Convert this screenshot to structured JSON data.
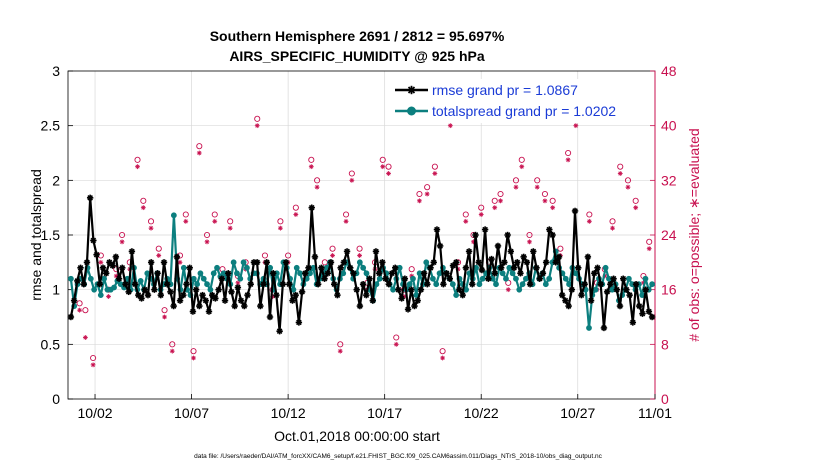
{
  "chart_data": {
    "type": "line",
    "title_line1": "Southern Hemisphere 2691 / 2812 = 95.697%",
    "title_line2": "AIRS_SPECIFIC_HUMIDITY @ 925 hPa",
    "xlabel": "Oct.01,2018 00:00:00 start",
    "ylabel_left": "rmse and totalspread",
    "ylabel_right": "# of obs: o=possible; ∗=evaluated",
    "footnote": "data file: /Users/raeder/DAI/ATM_forcXX/CAM6_setup/f.e21.FHIST_BGC.f09_025.CAM6assim.011/Diags_NTrS_2018-10/obs_diag_output.nc",
    "xlim": [
      0.6,
      31.0
    ],
    "ylim_left": [
      0,
      3
    ],
    "ylim_right": [
      0,
      48
    ],
    "x_ticks": [
      {
        "value": 2,
        "label": "10/02"
      },
      {
        "value": 7,
        "label": "10/07"
      },
      {
        "value": 12,
        "label": "10/12"
      },
      {
        "value": 17,
        "label": "10/17"
      },
      {
        "value": 22,
        "label": "10/22"
      },
      {
        "value": 27,
        "label": "10/27"
      },
      {
        "value": 32,
        "label": "11/01"
      }
    ],
    "y_ticks_left": [
      {
        "value": 0,
        "label": "0"
      },
      {
        "value": 0.5,
        "label": "0.5"
      },
      {
        "value": 1,
        "label": "1"
      },
      {
        "value": 1.5,
        "label": "1.5"
      },
      {
        "value": 2,
        "label": "2"
      },
      {
        "value": 2.5,
        "label": "2.5"
      },
      {
        "value": 3,
        "label": "3"
      }
    ],
    "y_ticks_right": [
      {
        "value": 0,
        "label": "0"
      },
      {
        "value": 8,
        "label": "8"
      },
      {
        "value": 16,
        "label": "16"
      },
      {
        "value": 24,
        "label": "24"
      },
      {
        "value": 32,
        "label": "32"
      },
      {
        "value": 40,
        "label": "40"
      },
      {
        "value": 48,
        "label": "48"
      }
    ],
    "series": [
      {
        "name": "rmse grand pr = 1.0867",
        "color": "#000000",
        "marker": "asterisk",
        "axis": "left",
        "values": [
          0.75,
          0.9,
          1.08,
          1.2,
          1.05,
          1.25,
          1.84,
          1.45,
          1.32,
          1.05,
          1.2,
          1.15,
          1.25,
          1.22,
          1.3,
          1.1,
          1.2,
          1.05,
          0.98,
          1.35,
          1.05,
          0.95,
          0.92,
          1.0,
          0.95,
          1.25,
          1.0,
          1.15,
          0.95,
          1.25,
          1.05,
          0.98,
          0.85,
          1.3,
          0.9,
          0.95,
          1.05,
          1.2,
          0.8,
          1.0,
          0.85,
          0.95,
          0.9,
          0.8,
          0.95,
          0.92,
          1.0,
          1.1,
          0.9,
          1.15,
          0.98,
          0.85,
          1.02,
          0.9,
          0.85,
          0.95,
          1.05,
          1.25,
          1.25,
          0.85,
          1.05,
          1.25,
          0.75,
          1.15,
          0.95,
          0.62,
          1.05,
          1.25,
          1.05,
          0.9,
          0.95,
          0.7,
          0.98,
          1.15,
          1.2,
          1.75,
          1.3,
          1.05,
          1.2,
          1.1,
          1.15,
          1.25,
          1.05,
          0.95,
          1.2,
          1.25,
          1.35,
          1.2,
          1.15,
          1.0,
          0.85,
          1.05,
          0.95,
          1.1,
          0.9,
          1.35,
          1.15,
          1.25,
          1.1,
          1.05,
          1.15,
          1.2,
          1.0,
          0.92,
          1.1,
          0.82,
          1.0,
          0.85,
          0.9,
          1.0,
          1.15,
          1.05,
          1.2,
          1.25,
          1.55,
          1.4,
          1.05,
          1.15,
          1.1,
          1.22,
          1.25,
          1.0,
          0.95,
          1.2,
          1.35,
          1.05,
          1.5,
          1.25,
          1.18,
          1.55,
          1.1,
          1.28,
          1.15,
          1.4,
          1.2,
          1.25,
          1.5,
          1.35,
          1.2,
          1.25,
          1.15,
          1.3,
          1.25,
          1.05,
          1.35,
          1.2,
          1.1,
          1.15,
          1.25,
          1.55,
          1.5,
          1.25,
          1.3,
          0.95,
          0.9,
          0.85,
          1.0,
          1.72,
          1.2,
          0.95,
          1.05,
          1.3,
          0.9,
          1.15,
          1.2,
          1.05,
          0.65,
          0.98,
          1.05,
          1.1,
          1.0,
          0.85,
          1.1,
          1.0,
          0.95,
          0.7,
          1.05,
          0.85,
          0.78,
          1.0,
          0.8,
          0.75
        ]
      },
      {
        "name": "totalspread grand pr = 1.0202",
        "color": "#0c7f7f",
        "marker": "circle",
        "axis": "left",
        "values": [
          1.1,
          0.85,
          1.05,
          1.1,
          1.05,
          1.2,
          1.1,
          1.0,
          1.05,
          0.95,
          1.1,
          1.0,
          1.0,
          1.02,
          1.08,
          1.05,
          1.02,
          1.1,
          1.0,
          1.2,
          1.0,
          1.08,
          1.0,
          1.15,
          1.1,
          1.05,
          1.15,
          1.0,
          1.05,
          1.1,
          1.05,
          1.68,
          1.1,
          1.0,
          1.2,
          1.0,
          0.95,
          1.1,
          1.05,
          1.15,
          1.1,
          1.05,
          1.0,
          1.15,
          1.2,
          1.12,
          1.15,
          1.1,
          1.05,
          1.25,
          1.15,
          1.1,
          1.25,
          1.2,
          1.1,
          1.15,
          1.15,
          1.05,
          1.1,
          1.05,
          1.2,
          1.0,
          1.15,
          1.05,
          1.25,
          1.2,
          1.1,
          1.0,
          1.2,
          1.15,
          1.05,
          1.1,
          1.15,
          1.2,
          1.05,
          1.1,
          1.15,
          1.2,
          1.25,
          1.1,
          1.0,
          1.1,
          1.15,
          1.25,
          1.2,
          1.1,
          1.15,
          1.25,
          1.2,
          1.15,
          1.0,
          0.9,
          1.05,
          1.1,
          1.2,
          1.15,
          1.05,
          1.0,
          1.1,
          1.2,
          1.05,
          1.0,
          1.05,
          1.1,
          0.95,
          1.15,
          1.05,
          1.25,
          1.2,
          1.1,
          1.05,
          1.15,
          1.2,
          1.15,
          1.1,
          1.05,
          0.95,
          1.1,
          1.05,
          1.0,
          1.15,
          1.1,
          1.2,
          1.05,
          1.1,
          1.15,
          1.2,
          1.1,
          1.05,
          1.2,
          1.15,
          1.1,
          1.2,
          1.15,
          1.1,
          1.0,
          1.05,
          1.1,
          1.15,
          1.05,
          1.2,
          1.1,
          1.15,
          1.05,
          1.1,
          1.25,
          1.35,
          1.2,
          1.15,
          1.1,
          1.05,
          1.2,
          1.15,
          1.1,
          1.05,
          1.0,
          0.65,
          0.95,
          1.0,
          1.1,
          1.05,
          1.2,
          1.1,
          1.0,
          1.05,
          0.9,
          0.95,
          1.0,
          1.1,
          1.05,
          1.0,
          1.05,
          0.95,
          1.1,
          1.0,
          1.05
        ]
      }
    ],
    "obs_possible": {
      "name": "possible (o)",
      "color": "#c8104f",
      "axis": "right",
      "points": [
        [
          1.2,
          14
        ],
        [
          1.5,
          13
        ],
        [
          1.9,
          6
        ],
        [
          2.3,
          21
        ],
        [
          2.7,
          16
        ],
        [
          3.1,
          19
        ],
        [
          3.4,
          24
        ],
        [
          3.8,
          20
        ],
        [
          4.2,
          35
        ],
        [
          4.5,
          29
        ],
        [
          4.9,
          26
        ],
        [
          5.3,
          22
        ],
        [
          5.6,
          13
        ],
        [
          6.0,
          8
        ],
        [
          6.4,
          21
        ],
        [
          6.7,
          27
        ],
        [
          7.1,
          7
        ],
        [
          7.4,
          37
        ],
        [
          7.8,
          24
        ],
        [
          8.2,
          27
        ],
        [
          8.6,
          19
        ],
        [
          9.0,
          26
        ],
        [
          9.4,
          18
        ],
        [
          9.8,
          20
        ],
        [
          10.4,
          41
        ],
        [
          10.8,
          21
        ],
        [
          11.2,
          16
        ],
        [
          11.6,
          26
        ],
        [
          12.0,
          21
        ],
        [
          12.4,
          28
        ],
        [
          12.8,
          18
        ],
        [
          13.2,
          35
        ],
        [
          13.5,
          32
        ],
        [
          13.9,
          20
        ],
        [
          14.3,
          22
        ],
        [
          14.7,
          8
        ],
        [
          15.0,
          27
        ],
        [
          15.3,
          33
        ],
        [
          15.7,
          22
        ],
        [
          16.1,
          17
        ],
        [
          16.5,
          20
        ],
        [
          16.9,
          35
        ],
        [
          17.2,
          34
        ],
        [
          17.6,
          9
        ],
        [
          18.0,
          16
        ],
        [
          18.4,
          19
        ],
        [
          18.8,
          30
        ],
        [
          19.2,
          31
        ],
        [
          19.6,
          34
        ],
        [
          20.0,
          7
        ],
        [
          20.4,
          42
        ],
        [
          20.8,
          20
        ],
        [
          21.2,
          27
        ],
        [
          21.6,
          24
        ],
        [
          22.0,
          28
        ],
        [
          22.4,
          20
        ],
        [
          22.7,
          29
        ],
        [
          23.0,
          30
        ],
        [
          23.4,
          17
        ],
        [
          23.8,
          32
        ],
        [
          24.1,
          35
        ],
        [
          24.5,
          24
        ],
        [
          24.9,
          32
        ],
        [
          25.3,
          30
        ],
        [
          25.7,
          29
        ],
        [
          26.1,
          22
        ],
        [
          26.5,
          36
        ],
        [
          26.9,
          41
        ],
        [
          27.2,
          43
        ],
        [
          27.6,
          27
        ],
        [
          28.0,
          17
        ],
        [
          28.4,
          19
        ],
        [
          28.8,
          26
        ],
        [
          29.2,
          34
        ],
        [
          29.6,
          32
        ],
        [
          30.0,
          29
        ],
        [
          30.4,
          18
        ],
        [
          30.7,
          23
        ]
      ]
    },
    "obs_evaluated": {
      "name": "evaluated (*)",
      "color": "#c8104f",
      "axis": "right",
      "points": [
        [
          1.2,
          13
        ],
        [
          1.5,
          9
        ],
        [
          1.9,
          5
        ],
        [
          2.3,
          20
        ],
        [
          2.7,
          15
        ],
        [
          3.1,
          18
        ],
        [
          3.4,
          23
        ],
        [
          3.8,
          19
        ],
        [
          4.2,
          34
        ],
        [
          4.5,
          28
        ],
        [
          4.9,
          25
        ],
        [
          5.3,
          21
        ],
        [
          5.6,
          12
        ],
        [
          6.0,
          7
        ],
        [
          6.4,
          20
        ],
        [
          6.7,
          26
        ],
        [
          7.1,
          6
        ],
        [
          7.4,
          36
        ],
        [
          7.8,
          23
        ],
        [
          8.2,
          26
        ],
        [
          8.6,
          18
        ],
        [
          9.0,
          25
        ],
        [
          9.4,
          17
        ],
        [
          9.8,
          19
        ],
        [
          10.4,
          40
        ],
        [
          10.8,
          20
        ],
        [
          11.2,
          15
        ],
        [
          11.6,
          25
        ],
        [
          12.0,
          20
        ],
        [
          12.4,
          27
        ],
        [
          12.8,
          17
        ],
        [
          13.2,
          34
        ],
        [
          13.5,
          31
        ],
        [
          13.9,
          19
        ],
        [
          14.3,
          21
        ],
        [
          14.7,
          7
        ],
        [
          15.0,
          26
        ],
        [
          15.3,
          32
        ],
        [
          15.7,
          21
        ],
        [
          16.1,
          16
        ],
        [
          16.5,
          19
        ],
        [
          16.9,
          34
        ],
        [
          17.2,
          33
        ],
        [
          17.6,
          8
        ],
        [
          18.0,
          15
        ],
        [
          18.4,
          18
        ],
        [
          18.8,
          29
        ],
        [
          19.2,
          30
        ],
        [
          19.6,
          33
        ],
        [
          20.0,
          6
        ],
        [
          20.4,
          40
        ],
        [
          20.8,
          19
        ],
        [
          21.2,
          26
        ],
        [
          21.6,
          23
        ],
        [
          22.0,
          27
        ],
        [
          22.4,
          19
        ],
        [
          22.7,
          28
        ],
        [
          23.0,
          29
        ],
        [
          23.4,
          16
        ],
        [
          23.8,
          31
        ],
        [
          24.1,
          34
        ],
        [
          24.5,
          23
        ],
        [
          24.9,
          31
        ],
        [
          25.3,
          29
        ],
        [
          25.7,
          28
        ],
        [
          26.1,
          21
        ],
        [
          26.5,
          35
        ],
        [
          26.9,
          40
        ],
        [
          27.2,
          41
        ],
        [
          27.6,
          26
        ],
        [
          28.0,
          16
        ],
        [
          28.4,
          18
        ],
        [
          28.8,
          25
        ],
        [
          29.2,
          33
        ],
        [
          29.6,
          31
        ],
        [
          30.0,
          28
        ],
        [
          30.4,
          17
        ],
        [
          30.7,
          22
        ]
      ]
    },
    "grid": true,
    "legend_position": "top-right"
  }
}
